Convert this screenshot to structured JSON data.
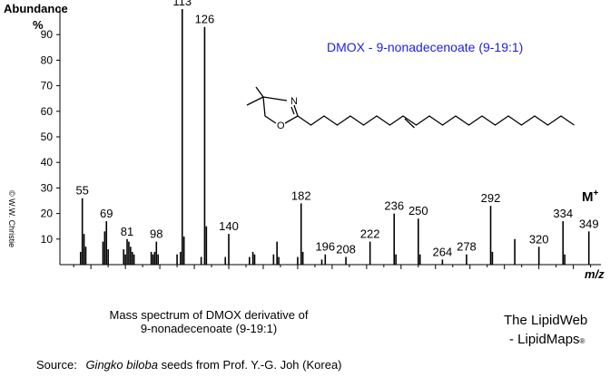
{
  "chart_data": {
    "type": "bar",
    "title": "DMOX - 9-nonadecenoate (9-19:1)",
    "ylabel": "Abundance",
    "yunit": "%",
    "xlabel": "m/z",
    "molecular_ion_label": "M",
    "molecular_ion_sup": "+",
    "xlim": [
      42,
      356
    ],
    "ylim": [
      0,
      100
    ],
    "x_ticks": [
      60,
      80,
      100,
      120,
      140,
      160,
      180,
      200,
      220,
      240,
      260,
      280,
      300,
      320,
      340
    ],
    "y_ticks": [
      10,
      20,
      30,
      40,
      50,
      60,
      70,
      80,
      90
    ],
    "peaks": [
      {
        "mz": 54,
        "value": 5
      },
      {
        "mz": 55,
        "value": 26,
        "label": "55"
      },
      {
        "mz": 56,
        "value": 12
      },
      {
        "mz": 57,
        "value": 7
      },
      {
        "mz": 67,
        "value": 9
      },
      {
        "mz": 68,
        "value": 13
      },
      {
        "mz": 69,
        "value": 17,
        "label": "69"
      },
      {
        "mz": 70,
        "value": 6
      },
      {
        "mz": 79,
        "value": 6
      },
      {
        "mz": 80,
        "value": 4
      },
      {
        "mz": 81,
        "value": 10,
        "label": "81"
      },
      {
        "mz": 82,
        "value": 9
      },
      {
        "mz": 83,
        "value": 7
      },
      {
        "mz": 84,
        "value": 5
      },
      {
        "mz": 85,
        "value": 4
      },
      {
        "mz": 95,
        "value": 5
      },
      {
        "mz": 96,
        "value": 4
      },
      {
        "mz": 97,
        "value": 5
      },
      {
        "mz": 98,
        "value": 9,
        "label": "98"
      },
      {
        "mz": 99,
        "value": 4
      },
      {
        "mz": 110,
        "value": 4
      },
      {
        "mz": 112,
        "value": 5
      },
      {
        "mz": 113,
        "value": 100,
        "label": "113"
      },
      {
        "mz": 114,
        "value": 11
      },
      {
        "mz": 124,
        "value": 3
      },
      {
        "mz": 126,
        "value": 93,
        "label": "126"
      },
      {
        "mz": 127,
        "value": 15
      },
      {
        "mz": 138,
        "value": 3
      },
      {
        "mz": 140,
        "value": 12,
        "label": "140"
      },
      {
        "mz": 152,
        "value": 3
      },
      {
        "mz": 154,
        "value": 5
      },
      {
        "mz": 155,
        "value": 4
      },
      {
        "mz": 166,
        "value": 4
      },
      {
        "mz": 168,
        "value": 9
      },
      {
        "mz": 169,
        "value": 3
      },
      {
        "mz": 180,
        "value": 3
      },
      {
        "mz": 182,
        "value": 24,
        "label": "182"
      },
      {
        "mz": 183,
        "value": 5
      },
      {
        "mz": 194,
        "value": 2
      },
      {
        "mz": 196,
        "value": 4,
        "label": "196"
      },
      {
        "mz": 208,
        "value": 3,
        "label": "208"
      },
      {
        "mz": 222,
        "value": 9,
        "label": "222"
      },
      {
        "mz": 236,
        "value": 20,
        "label": "236"
      },
      {
        "mz": 237,
        "value": 4
      },
      {
        "mz": 250,
        "value": 18,
        "label": "250"
      },
      {
        "mz": 251,
        "value": 4
      },
      {
        "mz": 264,
        "value": 2,
        "label": "264"
      },
      {
        "mz": 278,
        "value": 4,
        "label": "278"
      },
      {
        "mz": 292,
        "value": 23,
        "label": "292"
      },
      {
        "mz": 293,
        "value": 5
      },
      {
        "mz": 306,
        "value": 10
      },
      {
        "mz": 320,
        "value": 7,
        "label": "320"
      },
      {
        "mz": 334,
        "value": 17,
        "label": "334"
      },
      {
        "mz": 335,
        "value": 4
      },
      {
        "mz": 349,
        "value": 13,
        "label": "349"
      }
    ],
    "structure_atoms": [
      "N",
      "O"
    ]
  },
  "caption": {
    "line1": "Mass spectrum of DMOX derivative of",
    "line2": "9-nonadecenoate (9-19:1)"
  },
  "brand": {
    "line1": "The LipidWeb",
    "line2": "- LipidMaps",
    "mark": "®"
  },
  "copyright": "© W.W. Christie",
  "source": {
    "prefix": "Source:",
    "species": "Gingko biloba",
    "rest": "seeds from Prof. Y.-G. Joh (Korea)"
  }
}
